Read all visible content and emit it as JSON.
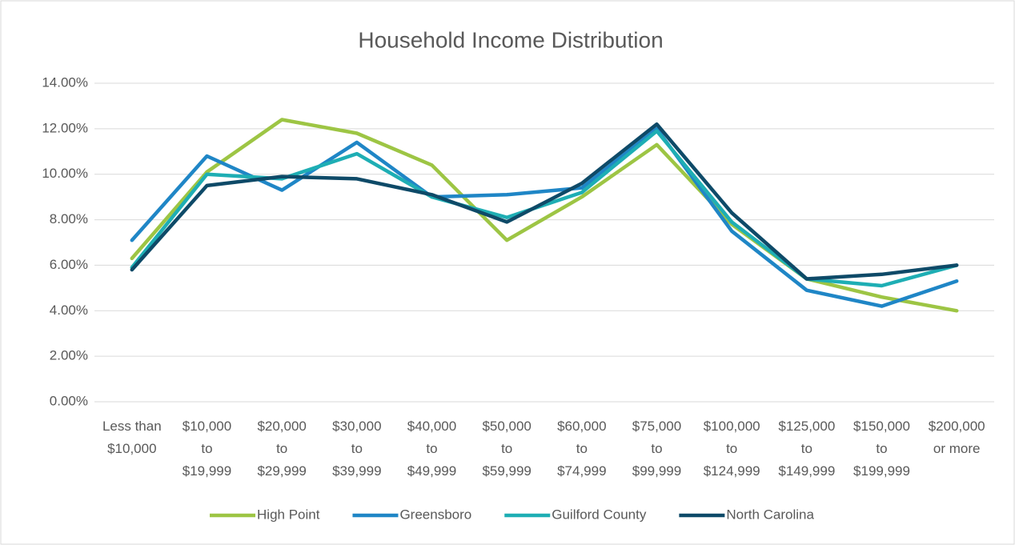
{
  "chart_data": {
    "type": "line",
    "title": "Household Income Distribution",
    "categories": [
      "Less than\n$10,000",
      "$10,000\nto\n$19,999",
      "$20,000\nto\n$29,999",
      "$30,000\nto\n$39,999",
      "$40,000\nto\n$49,999",
      "$50,000\nto\n$59,999",
      "$60,000\nto\n$74,999",
      "$75,000\nto\n$99,999",
      "$100,000\nto\n$124,999",
      "$125,000\nto\n$149,999",
      "$150,000\nto\n$199,999",
      "$200,000\nor more"
    ],
    "series": [
      {
        "name": "High Point",
        "color": "#9dc544",
        "values": [
          6.3,
          10.1,
          12.4,
          11.8,
          10.4,
          7.1,
          9.0,
          11.3,
          7.8,
          5.4,
          4.6,
          4.0
        ]
      },
      {
        "name": "Greensboro",
        "color": "#1f86c6",
        "values": [
          7.1,
          10.8,
          9.3,
          11.4,
          9.0,
          9.1,
          9.4,
          12.0,
          7.5,
          4.9,
          4.2,
          5.3
        ]
      },
      {
        "name": "Guilford County",
        "color": "#1eaeb4",
        "values": [
          5.9,
          10.0,
          9.8,
          10.9,
          9.0,
          8.1,
          9.2,
          11.9,
          7.9,
          5.4,
          5.1,
          6.0
        ]
      },
      {
        "name": "North Carolina",
        "color": "#0e4a68",
        "values": [
          5.8,
          9.5,
          9.9,
          9.8,
          9.1,
          7.9,
          9.6,
          12.2,
          8.3,
          5.4,
          5.6,
          6.0
        ]
      }
    ],
    "ylim": [
      0,
      14
    ],
    "yticks": [
      {
        "value": 0,
        "label": "0.00%"
      },
      {
        "value": 2,
        "label": "2.00%"
      },
      {
        "value": 4,
        "label": "4.00%"
      },
      {
        "value": 6,
        "label": "6.00%"
      },
      {
        "value": 8,
        "label": "8.00%"
      },
      {
        "value": 10,
        "label": "10.00%"
      },
      {
        "value": 12,
        "label": "12.00%"
      },
      {
        "value": 14,
        "label": "14.00%"
      }
    ],
    "grid": true,
    "legend": "bottom"
  }
}
